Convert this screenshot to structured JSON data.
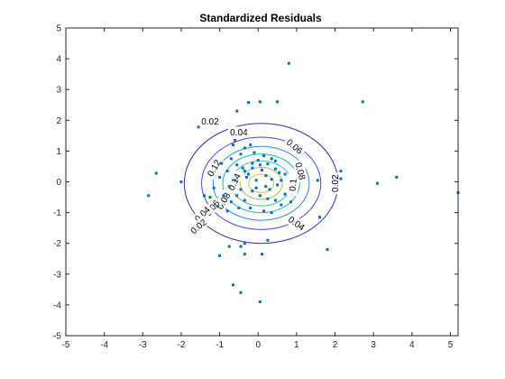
{
  "chart_data": {
    "type": "scatter",
    "title": "Standardized Residuals",
    "xlabel": "",
    "ylabel": "",
    "xlim": [
      -5,
      5.2
    ],
    "ylim": [
      -5,
      5
    ],
    "xticks": [
      "-5",
      "-4",
      "-3",
      "-2",
      "-1",
      "0",
      "1",
      "2",
      "3",
      "4",
      "5"
    ],
    "yticks": [
      "5",
      "4",
      "3",
      "2",
      "1",
      "0",
      "-1",
      "-2",
      "-3",
      "-4",
      "-5"
    ],
    "grid": false,
    "marker_color": "#0072BD",
    "contours": {
      "center": [
        0.08,
        -0.05
      ],
      "levels": [
        0.02,
        0.04,
        0.06,
        0.08,
        0.1,
        0.12,
        0.14
      ],
      "semi_axes": [
        [
          2.0,
          1.95
        ],
        [
          1.55,
          1.5
        ],
        [
          1.25,
          1.2
        ],
        [
          1.0,
          0.95
        ],
        [
          0.78,
          0.73
        ],
        [
          0.55,
          0.52
        ],
        [
          0.33,
          0.3
        ]
      ],
      "colors": [
        "#3E26A8",
        "#4743F7",
        "#2E87F7",
        "#19B2D3",
        "#38C699",
        "#A4BE55",
        "#E8BA31"
      ],
      "labels": [
        {
          "text": "0.02",
          "x": -1.25,
          "y": 1.97,
          "rot": 0
        },
        {
          "text": "0.04",
          "x": -0.5,
          "y": 1.62,
          "rot": 0
        },
        {
          "text": "0.06",
          "x": 0.95,
          "y": 1.15,
          "rot": 40
        },
        {
          "text": "0.08",
          "x": 1.1,
          "y": 0.35,
          "rot": 75
        },
        {
          "text": "0.1",
          "x": 0.9,
          "y": -0.1,
          "rot": -85
        },
        {
          "text": "0.12",
          "x": -1.15,
          "y": 0.45,
          "rot": -60
        },
        {
          "text": "0.14",
          "x": -0.62,
          "y": 0.0,
          "rot": -65
        },
        {
          "text": "0.08",
          "x": -0.9,
          "y": -0.62,
          "rot": -60
        },
        {
          "text": "0.04",
          "x": 1.0,
          "y": -1.35,
          "rot": 35
        },
        {
          "text": "0.06",
          "x": -1.2,
          "y": -0.85,
          "rot": -50
        },
        {
          "text": "0.04",
          "x": -1.45,
          "y": -1.05,
          "rot": -45
        },
        {
          "text": "0.02",
          "x": 2.0,
          "y": -0.05,
          "rot": -90
        },
        {
          "text": "0.02",
          "x": -1.55,
          "y": -1.45,
          "rot": -40
        }
      ]
    },
    "points": [
      [
        0.8,
        3.85
      ],
      [
        -0.25,
        2.58
      ],
      [
        0.05,
        2.6
      ],
      [
        0.5,
        2.6
      ],
      [
        -0.55,
        2.3
      ],
      [
        2.72,
        2.6
      ],
      [
        -1.55,
        1.78
      ],
      [
        -0.6,
        1.35
      ],
      [
        -0.65,
        1.2
      ],
      [
        -0.2,
        1.2
      ],
      [
        -2.65,
        0.28
      ],
      [
        -1.0,
        0.15
      ],
      [
        -0.45,
        0.9
      ],
      [
        -0.35,
        1.1
      ],
      [
        -0.1,
        0.95
      ],
      [
        0.15,
        0.85
      ],
      [
        0.35,
        0.75
      ],
      [
        -0.7,
        0.75
      ],
      [
        -0.95,
        0.6
      ],
      [
        -0.15,
        0.6
      ],
      [
        0.05,
        0.55
      ],
      [
        0.25,
        0.58
      ],
      [
        0.45,
        0.68
      ],
      [
        -0.55,
        0.55
      ],
      [
        -0.8,
        0.35
      ],
      [
        -0.35,
        0.35
      ],
      [
        0.1,
        0.38
      ],
      [
        0.2,
        0.2
      ],
      [
        0.45,
        0.42
      ],
      [
        -0.3,
        0.15
      ],
      [
        -0.05,
        0.05
      ],
      [
        0.35,
        0.08
      ],
      [
        0.55,
        0.3
      ],
      [
        0.7,
        0.25
      ],
      [
        -0.6,
        0.05
      ],
      [
        0.5,
        -0.1
      ],
      [
        0.3,
        -0.25
      ],
      [
        -0.15,
        -0.3
      ],
      [
        -0.45,
        -0.25
      ],
      [
        0.05,
        -0.45
      ],
      [
        0.25,
        -0.55
      ],
      [
        0.45,
        -0.6
      ],
      [
        -0.35,
        -0.6
      ],
      [
        -0.55,
        -0.45
      ],
      [
        -0.7,
        -0.65
      ],
      [
        -0.9,
        -0.45
      ],
      [
        0.6,
        -0.75
      ],
      [
        -0.2,
        -0.85
      ],
      [
        0.15,
        -0.95
      ],
      [
        0.35,
        -1.0
      ],
      [
        -0.5,
        -0.85
      ],
      [
        -0.8,
        -0.95
      ],
      [
        -1.05,
        -0.8
      ],
      [
        -1.25,
        -0.5
      ],
      [
        -1.15,
        -0.2
      ],
      [
        0.7,
        -0.4
      ],
      [
        0.85,
        -0.65
      ],
      [
        -0.4,
        0.45
      ],
      [
        0.0,
        0.7
      ],
      [
        -0.25,
        0.25
      ],
      [
        0.6,
        0.05
      ],
      [
        0.2,
        -0.15
      ],
      [
        -0.05,
        -0.2
      ],
      [
        -0.75,
        -0.15
      ],
      [
        -0.15,
        0.45
      ],
      [
        -2.85,
        -0.45
      ],
      [
        -1.4,
        -0.45
      ],
      [
        -2.0,
        0.0
      ],
      [
        1.55,
        0.05
      ],
      [
        2.15,
        0.35
      ],
      [
        2.15,
        0.1
      ],
      [
        3.1,
        -0.05
      ],
      [
        3.6,
        0.15
      ],
      [
        5.2,
        -0.35
      ],
      [
        -0.75,
        -2.1
      ],
      [
        -0.45,
        -2.1
      ],
      [
        -0.35,
        -2.0
      ],
      [
        0.25,
        -1.9
      ],
      [
        -1.0,
        -2.4
      ],
      [
        -0.35,
        -2.35
      ],
      [
        0.1,
        -2.35
      ],
      [
        1.8,
        -2.2
      ],
      [
        1.6,
        -1.15
      ],
      [
        -0.65,
        -3.35
      ],
      [
        -0.45,
        -3.6
      ],
      [
        0.05,
        -3.9
      ]
    ]
  }
}
